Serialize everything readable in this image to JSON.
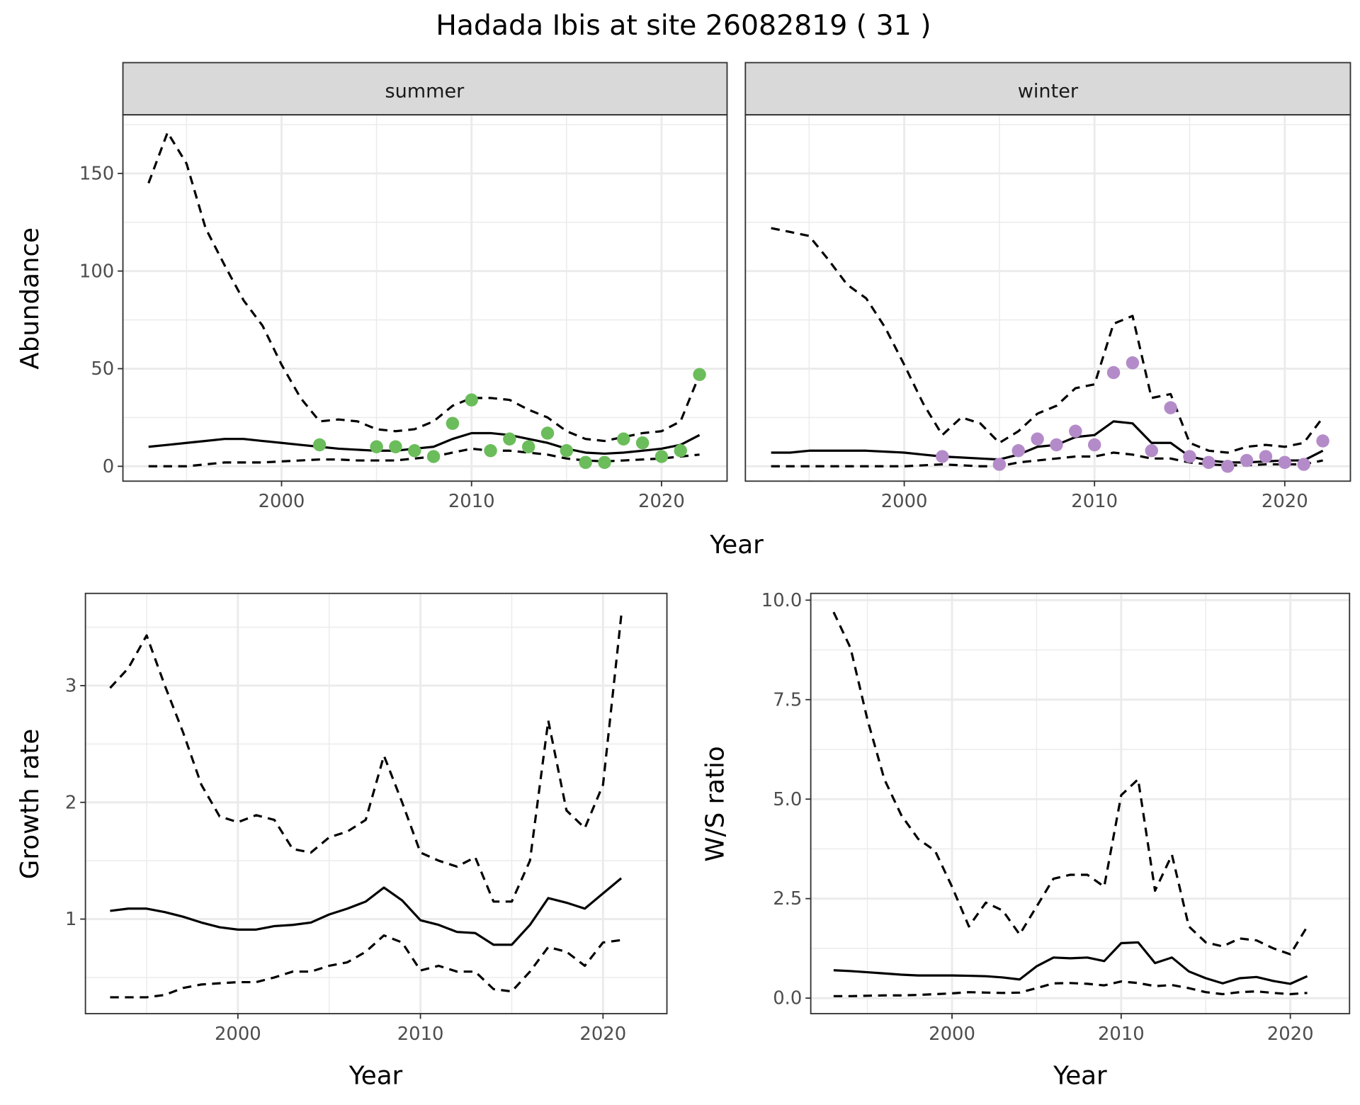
{
  "title": "Hadada Ibis at site 26082819 ( 31 )",
  "colors": {
    "summer_points": "#6bbd5b",
    "winter_points": "#b48bc9",
    "strip": "#d9d9d9",
    "grid": "#ebebeb"
  },
  "chart_data": [
    {
      "id": "summer",
      "type": "line",
      "strip": "summer",
      "xlabel": "Year",
      "ylabel": "Abundance",
      "xticks": [
        2000,
        2010,
        2020
      ],
      "yticks": [
        0,
        50,
        100,
        150
      ],
      "xlim": [
        1991.65,
        2023.45
      ],
      "ylim": [
        -7.6,
        180
      ],
      "x": [
        1993,
        1994,
        1995,
        1996,
        1997,
        1998,
        1999,
        2000,
        2001,
        2002,
        2003,
        2004,
        2005,
        2006,
        2007,
        2008,
        2009,
        2010,
        2011,
        2012,
        2013,
        2014,
        2015,
        2016,
        2017,
        2018,
        2019,
        2020,
        2021,
        2022
      ],
      "series": [
        {
          "name": "upper",
          "style": "dashed",
          "values": [
            145,
            171,
            155,
            122,
            103,
            85,
            72,
            52,
            35,
            23,
            24,
            23,
            19,
            18,
            19,
            23,
            31,
            35,
            35,
            34,
            29,
            25,
            18,
            14,
            13,
            15,
            17,
            18,
            23,
            47
          ]
        },
        {
          "name": "mean",
          "style": "solid",
          "values": [
            10,
            11,
            12,
            13,
            14,
            14,
            13,
            12,
            11,
            10,
            9,
            8.5,
            8,
            8,
            9,
            10,
            14,
            17,
            17,
            16,
            14,
            12,
            9,
            7,
            6.5,
            7,
            8,
            9,
            11,
            16
          ]
        },
        {
          "name": "lower",
          "style": "dashed",
          "values": [
            0,
            0,
            0,
            1,
            2,
            2,
            2,
            2.5,
            3,
            3.5,
            3.5,
            3,
            3,
            3,
            4,
            5,
            7,
            9,
            8,
            8,
            7,
            6,
            4,
            3,
            2.5,
            3,
            3.5,
            4,
            5,
            6
          ]
        }
      ],
      "points": {
        "x": [
          2002,
          2005,
          2006,
          2007,
          2008,
          2009,
          2010,
          2011,
          2012,
          2013,
          2014,
          2015,
          2016,
          2017,
          2018,
          2019,
          2020,
          2021,
          2022
        ],
        "y": [
          11,
          10,
          10,
          8,
          5,
          22,
          34,
          8,
          14,
          10,
          17,
          8,
          2,
          2,
          14,
          12,
          5,
          8,
          47
        ]
      }
    },
    {
      "id": "winter",
      "type": "line",
      "strip": "winter",
      "xlabel": "Year",
      "ylabel": "Abundance",
      "xticks": [
        2000,
        2010,
        2020
      ],
      "yticks": [
        0,
        50,
        100,
        150
      ],
      "xlim": [
        1991.65,
        2023.45
      ],
      "ylim": [
        -7.6,
        180
      ],
      "x": [
        1993,
        1994,
        1995,
        1996,
        1997,
        1998,
        1999,
        2000,
        2001,
        2002,
        2003,
        2004,
        2005,
        2006,
        2007,
        2008,
        2009,
        2010,
        2011,
        2012,
        2013,
        2014,
        2015,
        2016,
        2017,
        2018,
        2019,
        2020,
        2021,
        2022
      ],
      "series": [
        {
          "name": "upper",
          "style": "dashed",
          "values": [
            122,
            120,
            118,
            106,
            93,
            86,
            71,
            52,
            32,
            16,
            25,
            22,
            12,
            18,
            27,
            31,
            40,
            42,
            73,
            77,
            35,
            37,
            12,
            8,
            7,
            10,
            11,
            10,
            12,
            25
          ]
        },
        {
          "name": "mean",
          "style": "solid",
          "values": [
            7,
            7,
            8,
            8,
            8,
            8,
            7.5,
            7,
            6,
            5,
            4.5,
            4,
            3.5,
            6,
            10,
            11,
            15,
            16,
            23,
            22,
            12,
            12,
            5,
            3,
            2,
            2,
            2.5,
            3,
            3,
            8
          ]
        },
        {
          "name": "lower",
          "style": "dashed",
          "values": [
            0,
            0,
            0,
            0,
            0,
            0,
            0,
            0,
            0.5,
            1,
            0.5,
            0,
            0,
            2,
            3,
            4,
            5,
            5,
            7,
            6,
            4,
            4,
            2,
            1,
            0.5,
            0.5,
            1,
            1,
            1,
            3
          ]
        }
      ],
      "points": {
        "x": [
          2002,
          2005,
          2006,
          2007,
          2008,
          2009,
          2010,
          2011,
          2012,
          2013,
          2014,
          2015,
          2016,
          2017,
          2018,
          2019,
          2020,
          2021,
          2022
        ],
        "y": [
          5,
          1,
          8,
          14,
          11,
          18,
          11,
          48,
          53,
          8,
          30,
          5,
          2,
          0,
          3,
          5,
          2,
          1,
          13
        ]
      }
    },
    {
      "id": "growth",
      "type": "line",
      "xlabel": "Year",
      "ylabel": "Growth rate",
      "xticks": [
        2000,
        2010,
        2020
      ],
      "yticks": [
        1,
        2,
        3
      ],
      "xlim": [
        1991.65,
        2023.5
      ],
      "ylim": [
        0.19,
        3.79
      ],
      "x": [
        1993,
        1994,
        1995,
        1996,
        1997,
        1998,
        1999,
        2000,
        2001,
        2002,
        2003,
        2004,
        2005,
        2006,
        2007,
        2008,
        2009,
        2010,
        2011,
        2012,
        2013,
        2014,
        2015,
        2016,
        2017,
        2018,
        2019,
        2020,
        2021
      ],
      "series": [
        {
          "name": "upper",
          "style": "dashed",
          "values": [
            2.98,
            3.15,
            3.43,
            3.0,
            2.6,
            2.15,
            1.88,
            1.83,
            1.89,
            1.85,
            1.6,
            1.57,
            1.7,
            1.75,
            1.85,
            2.4,
            2.0,
            1.57,
            1.5,
            1.45,
            1.53,
            1.15,
            1.15,
            1.5,
            2.7,
            1.93,
            1.78,
            2.15,
            3.6
          ]
        },
        {
          "name": "mean",
          "style": "solid",
          "values": [
            1.07,
            1.09,
            1.09,
            1.06,
            1.02,
            0.97,
            0.93,
            0.91,
            0.91,
            0.94,
            0.95,
            0.97,
            1.04,
            1.09,
            1.15,
            1.27,
            1.16,
            0.99,
            0.95,
            0.89,
            0.88,
            0.78,
            0.78,
            0.95,
            1.18,
            1.14,
            1.09,
            1.22,
            1.35
          ]
        },
        {
          "name": "lower",
          "style": "dashed",
          "values": [
            0.33,
            0.33,
            0.33,
            0.35,
            0.41,
            0.44,
            0.45,
            0.46,
            0.46,
            0.5,
            0.55,
            0.55,
            0.6,
            0.63,
            0.72,
            0.86,
            0.8,
            0.56,
            0.6,
            0.55,
            0.55,
            0.4,
            0.38,
            0.55,
            0.76,
            0.72,
            0.6,
            0.8,
            0.82
          ]
        }
      ]
    },
    {
      "id": "ws",
      "type": "line",
      "xlabel": "Year",
      "ylabel": "W/S ratio",
      "xticks": [
        2000,
        2010,
        2020
      ],
      "yticks": [
        "0.0",
        "2.5",
        "5.0",
        "7.5",
        "10.0"
      ],
      "xlim": [
        1991.65,
        2023.5
      ],
      "ylim": [
        -0.39,
        10.17
      ],
      "x": [
        1993,
        1994,
        1995,
        1996,
        1997,
        1998,
        1999,
        2000,
        2001,
        2002,
        2003,
        2004,
        2005,
        2006,
        2007,
        2008,
        2009,
        2010,
        2011,
        2012,
        2013,
        2014,
        2015,
        2016,
        2017,
        2018,
        2019,
        2020,
        2021
      ],
      "series": [
        {
          "name": "upper",
          "style": "dashed",
          "values": [
            9.7,
            8.8,
            7.0,
            5.5,
            4.6,
            4.0,
            3.7,
            2.8,
            1.8,
            2.4,
            2.2,
            1.6,
            2.3,
            3.0,
            3.1,
            3.1,
            2.8,
            5.1,
            5.5,
            2.7,
            3.6,
            1.8,
            1.4,
            1.3,
            1.5,
            1.45,
            1.25,
            1.1,
            1.8
          ]
        },
        {
          "name": "mean",
          "style": "solid",
          "values": [
            0.7,
            0.68,
            0.65,
            0.62,
            0.59,
            0.57,
            0.57,
            0.57,
            0.56,
            0.55,
            0.52,
            0.47,
            0.8,
            1.02,
            1.0,
            1.02,
            0.93,
            1.38,
            1.4,
            0.88,
            1.02,
            0.67,
            0.5,
            0.37,
            0.5,
            0.53,
            0.43,
            0.36,
            0.55
          ]
        },
        {
          "name": "lower",
          "style": "dashed",
          "values": [
            0.05,
            0.05,
            0.06,
            0.07,
            0.07,
            0.08,
            0.1,
            0.12,
            0.15,
            0.14,
            0.13,
            0.14,
            0.25,
            0.37,
            0.38,
            0.36,
            0.32,
            0.42,
            0.38,
            0.3,
            0.33,
            0.25,
            0.15,
            0.1,
            0.15,
            0.17,
            0.13,
            0.1,
            0.13
          ]
        }
      ]
    }
  ]
}
